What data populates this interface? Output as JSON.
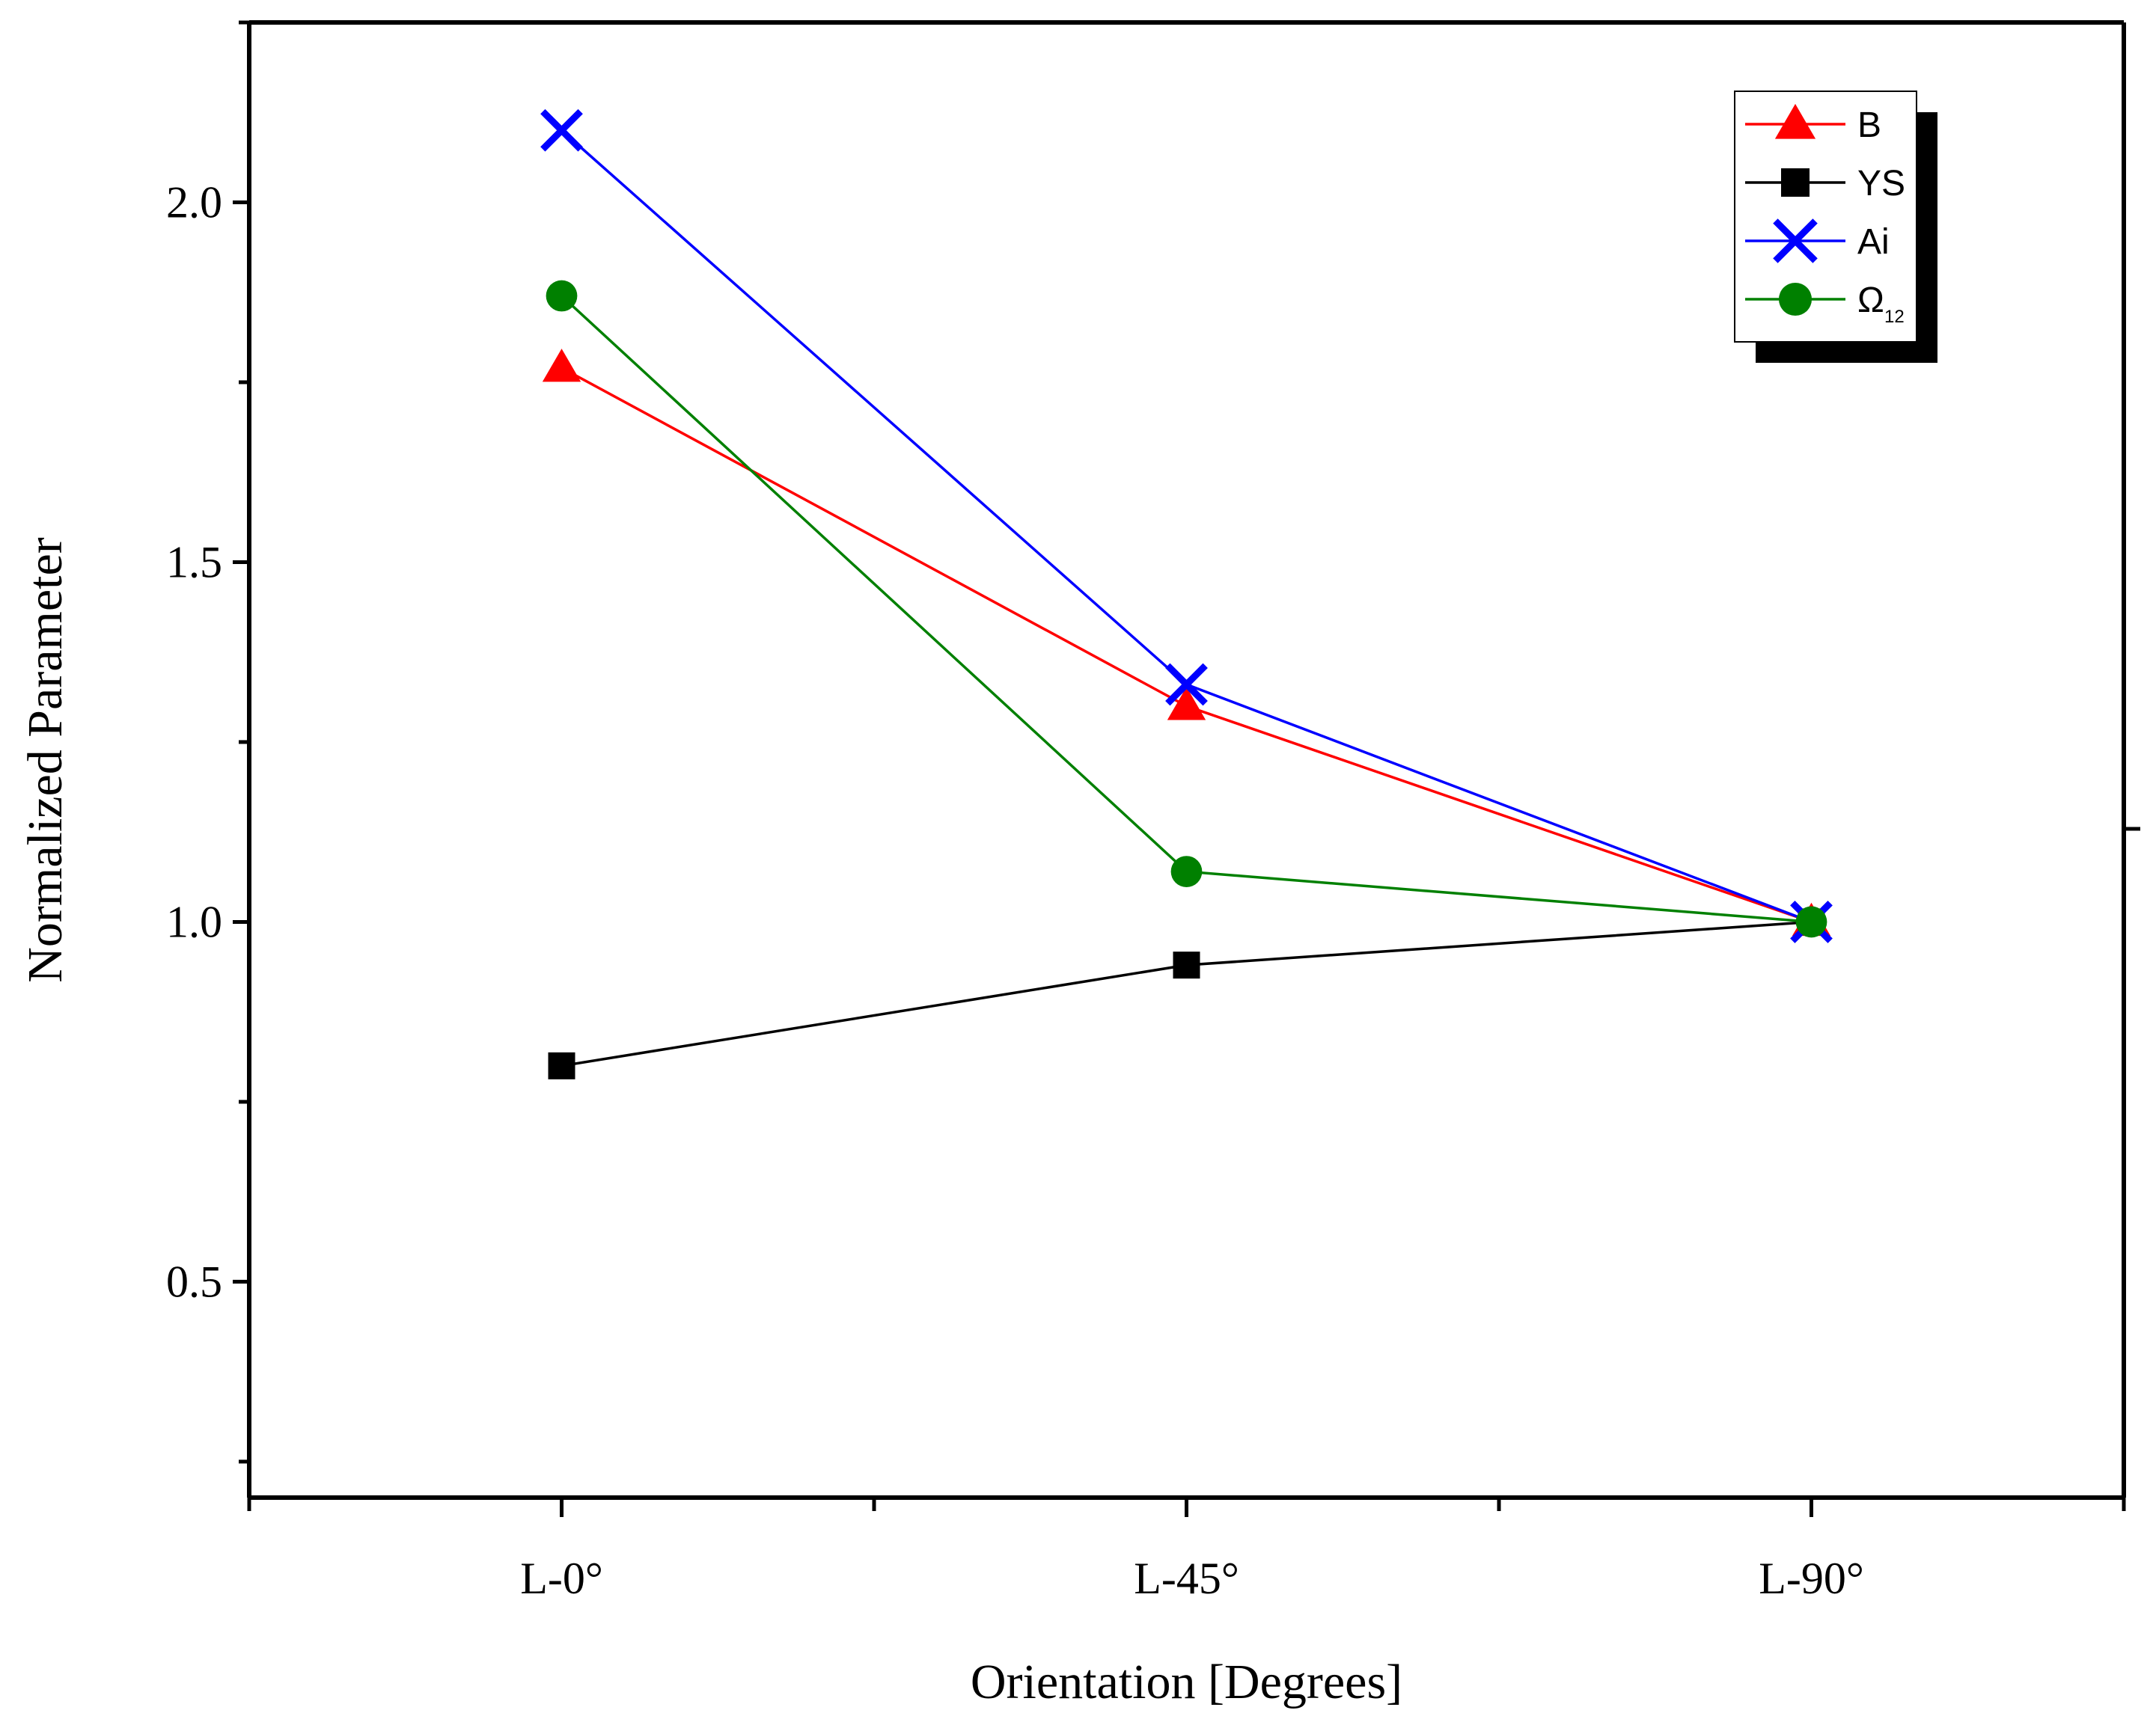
{
  "chart_data": {
    "type": "line",
    "title": "",
    "xlabel": "Orientation [Degrees]",
    "ylabel": "Normalized Parameter",
    "categories": [
      "L-0°",
      "L-45°",
      "L-90°"
    ],
    "ylim": [
      0.2,
      2.25
    ],
    "yticks": [
      "0.5",
      "1.0",
      "1.5",
      "2.0"
    ],
    "grid": false,
    "legend_position": "top-right",
    "series": [
      {
        "name": "B",
        "subscript": "",
        "color": "#ff0000",
        "marker": "triangle",
        "values": [
          1.77,
          1.3,
          1.0
        ]
      },
      {
        "name": "YS",
        "subscript": "",
        "color": "#000000",
        "marker": "square",
        "values": [
          0.8,
          0.94,
          1.0
        ]
      },
      {
        "name": "Ai",
        "subscript": "",
        "color": "#0000ff",
        "marker": "x",
        "values": [
          2.1,
          1.33,
          1.0
        ]
      },
      {
        "name": "Ω",
        "subscript": "12",
        "color": "#008000",
        "marker": "circle",
        "values": [
          1.87,
          1.07,
          1.0
        ]
      }
    ]
  }
}
